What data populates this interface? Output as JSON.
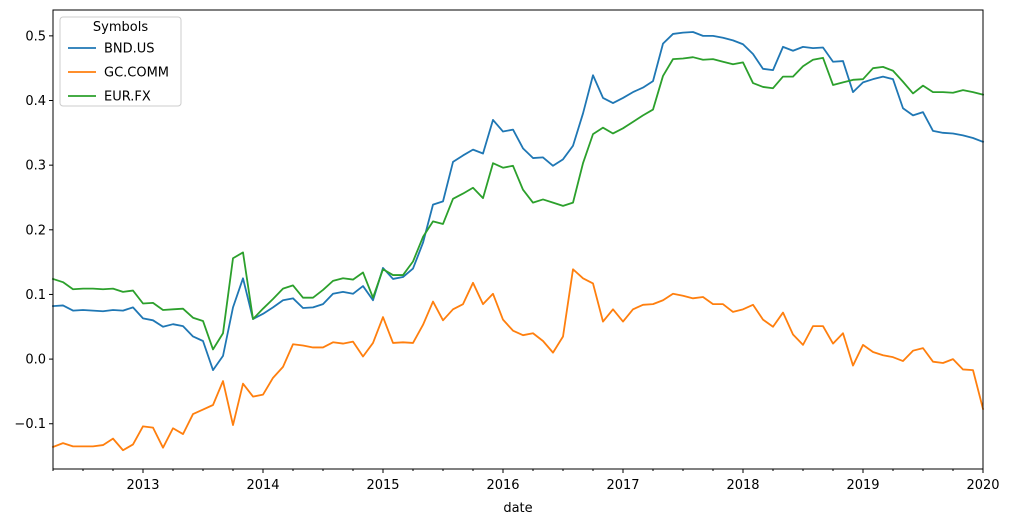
{
  "chart_data": {
    "type": "line",
    "xlabel": "date",
    "ylabel": "",
    "ylim": [
      -0.17,
      0.54
    ],
    "xlim": [
      "2012-04",
      "2020-01"
    ],
    "grid": false,
    "legend": {
      "title": "Symbols",
      "placement": "top-left"
    },
    "x_tick_labels": [
      "2013",
      "2014",
      "2015",
      "2016",
      "2017",
      "2018",
      "2019",
      "2020"
    ],
    "y_tick_labels": [
      "−0.1",
      "0.0",
      "0.1",
      "0.2",
      "0.3",
      "0.4",
      "0.5"
    ],
    "y_tick_values": [
      -0.1,
      0.0,
      0.1,
      0.2,
      0.3,
      0.4,
      0.5
    ],
    "x": [
      "2012-04",
      "2012-05",
      "2012-06",
      "2012-07",
      "2012-08",
      "2012-09",
      "2012-10",
      "2012-11",
      "2012-12",
      "2013-01",
      "2013-02",
      "2013-03",
      "2013-04",
      "2013-05",
      "2013-06",
      "2013-07",
      "2013-08",
      "2013-09",
      "2013-10",
      "2013-11",
      "2013-12",
      "2014-01",
      "2014-02",
      "2014-03",
      "2014-04",
      "2014-05",
      "2014-06",
      "2014-07",
      "2014-08",
      "2014-09",
      "2014-10",
      "2014-11",
      "2014-12",
      "2015-01",
      "2015-02",
      "2015-03",
      "2015-04",
      "2015-05",
      "2015-06",
      "2015-07",
      "2015-08",
      "2015-09",
      "2015-10",
      "2015-11",
      "2015-12",
      "2016-01",
      "2016-02",
      "2016-03",
      "2016-04",
      "2016-05",
      "2016-06",
      "2016-07",
      "2016-08",
      "2016-09",
      "2016-10",
      "2016-11",
      "2016-12",
      "2017-01",
      "2017-02",
      "2017-03",
      "2017-04",
      "2017-05",
      "2017-06",
      "2017-07",
      "2017-08",
      "2017-09",
      "2017-10",
      "2017-11",
      "2017-12",
      "2018-01",
      "2018-02",
      "2018-03",
      "2018-04",
      "2018-05",
      "2018-06",
      "2018-07",
      "2018-08",
      "2018-09",
      "2018-10",
      "2018-11",
      "2018-12",
      "2019-01",
      "2019-02",
      "2019-03",
      "2019-04",
      "2019-05",
      "2019-06",
      "2019-07",
      "2019-08",
      "2019-09",
      "2019-10",
      "2019-11",
      "2019-12",
      "2020-01"
    ],
    "series": [
      {
        "name": "BND.US",
        "color": "#1f77b4",
        "values": [
          0.082,
          0.083,
          0.075,
          0.076,
          0.075,
          0.074,
          0.076,
          0.075,
          0.08,
          0.063,
          0.06,
          0.05,
          0.054,
          0.051,
          0.035,
          0.028,
          -0.017,
          0.005,
          0.08,
          0.125,
          0.062,
          0.07,
          0.08,
          0.091,
          0.094,
          0.079,
          0.08,
          0.085,
          0.101,
          0.104,
          0.101,
          0.113,
          0.091,
          0.141,
          0.124,
          0.127,
          0.14,
          0.18,
          0.239,
          0.244,
          0.305,
          0.315,
          0.324,
          0.318,
          0.37,
          0.352,
          0.355,
          0.326,
          0.311,
          0.312,
          0.299,
          0.309,
          0.33,
          0.38,
          0.439,
          0.404,
          0.396,
          0.404,
          0.413,
          0.42,
          0.43,
          0.488,
          0.503,
          0.505,
          0.506,
          0.5,
          0.5,
          0.497,
          0.493,
          0.487,
          0.472,
          0.449,
          0.447,
          0.483,
          0.477,
          0.483,
          0.481,
          0.482,
          0.46,
          0.461,
          0.413,
          0.428,
          0.433,
          0.437,
          0.433,
          0.388,
          0.377,
          0.382,
          0.353,
          0.35,
          0.349,
          0.346,
          0.342,
          0.336
        ]
      },
      {
        "name": "GC.COMM",
        "color": "#ff7f0e",
        "values": [
          -0.136,
          -0.13,
          -0.135,
          -0.135,
          -0.135,
          -0.133,
          -0.123,
          -0.141,
          -0.132,
          -0.104,
          -0.106,
          -0.137,
          -0.107,
          -0.116,
          -0.085,
          -0.078,
          -0.071,
          -0.034,
          -0.102,
          -0.038,
          -0.058,
          -0.055,
          -0.029,
          -0.012,
          0.023,
          0.021,
          0.018,
          0.018,
          0.026,
          0.024,
          0.027,
          0.004,
          0.025,
          0.065,
          0.025,
          0.026,
          0.025,
          0.053,
          0.089,
          0.06,
          0.077,
          0.085,
          0.118,
          0.085,
          0.101,
          0.061,
          0.044,
          0.037,
          0.04,
          0.028,
          0.01,
          0.035,
          0.139,
          0.125,
          0.117,
          0.058,
          0.077,
          0.058,
          0.077,
          0.084,
          0.085,
          0.091,
          0.101,
          0.098,
          0.094,
          0.096,
          0.085,
          0.085,
          0.073,
          0.077,
          0.084,
          0.061,
          0.05,
          0.072,
          0.038,
          0.022,
          0.051,
          0.051,
          0.024,
          0.04,
          -0.01,
          0.022,
          0.011,
          0.006,
          0.003,
          -0.003,
          0.013,
          0.017,
          -0.004,
          -0.006,
          0.0,
          -0.016,
          -0.017,
          -0.077
        ]
      },
      {
        "name": "EUR.FX",
        "color": "#2ca02c",
        "values": [
          0.124,
          0.119,
          0.108,
          0.109,
          0.109,
          0.108,
          0.109,
          0.104,
          0.106,
          0.086,
          0.087,
          0.076,
          0.077,
          0.078,
          0.064,
          0.059,
          0.015,
          0.04,
          0.156,
          0.165,
          0.062,
          0.078,
          0.093,
          0.109,
          0.114,
          0.095,
          0.095,
          0.107,
          0.121,
          0.125,
          0.123,
          0.134,
          0.095,
          0.139,
          0.13,
          0.13,
          0.151,
          0.189,
          0.213,
          0.209,
          0.248,
          0.256,
          0.265,
          0.249,
          0.303,
          0.296,
          0.299,
          0.262,
          0.242,
          0.247,
          0.242,
          0.237,
          0.242,
          0.303,
          0.348,
          0.358,
          0.349,
          0.357,
          0.367,
          0.377,
          0.386,
          0.438,
          0.464,
          0.465,
          0.467,
          0.463,
          0.464,
          0.46,
          0.456,
          0.459,
          0.427,
          0.421,
          0.419,
          0.437,
          0.437,
          0.453,
          0.463,
          0.466,
          0.424,
          0.428,
          0.432,
          0.433,
          0.45,
          0.452,
          0.446,
          0.429,
          0.411,
          0.423,
          0.413,
          0.413,
          0.412,
          0.416,
          0.413,
          0.409
        ]
      }
    ]
  }
}
